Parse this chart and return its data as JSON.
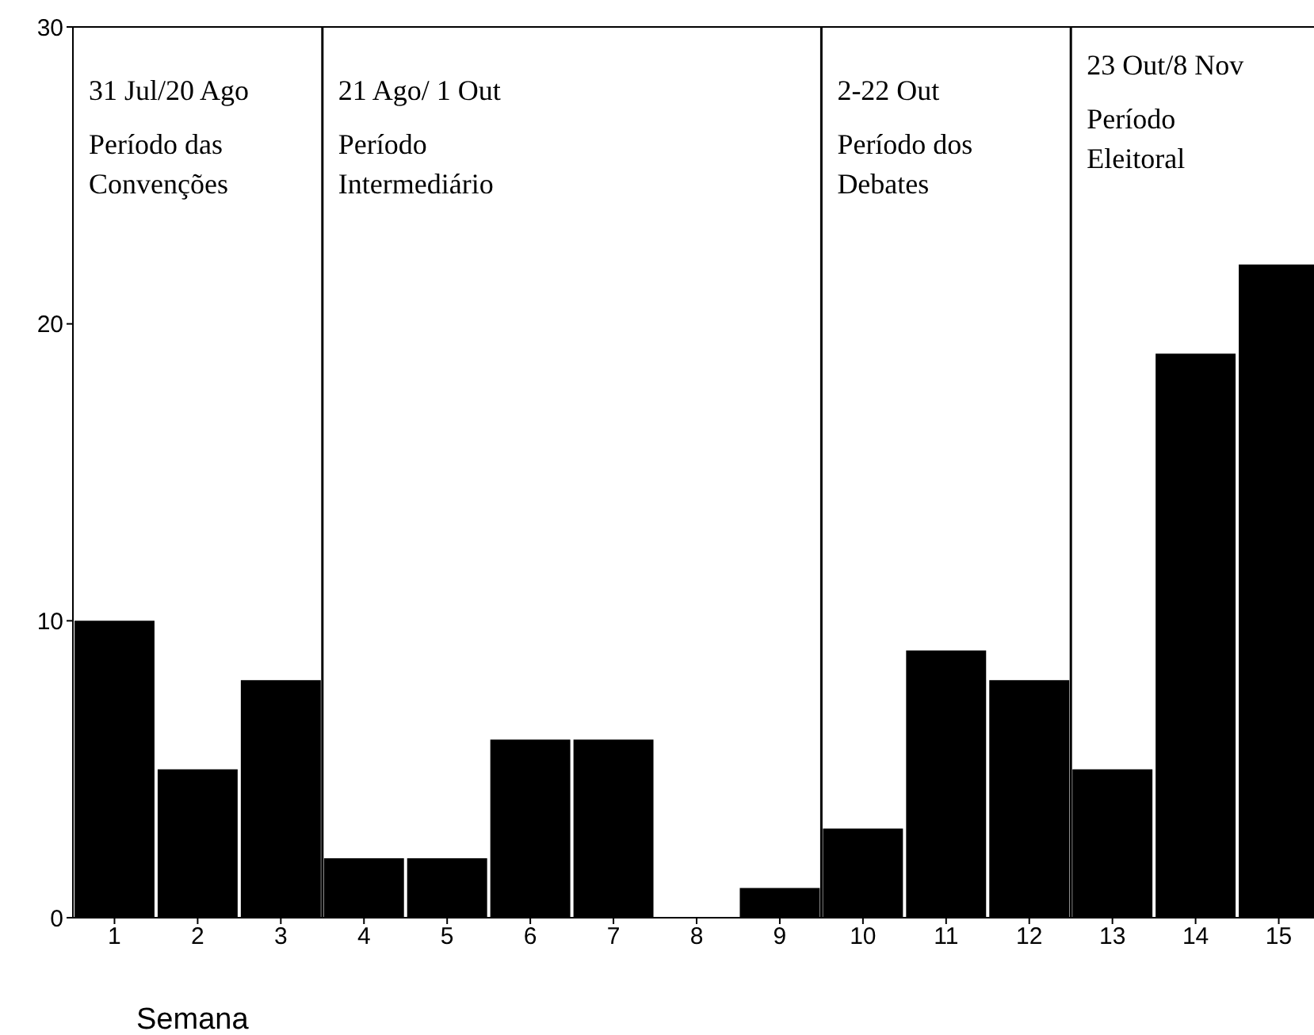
{
  "chart_data": {
    "type": "bar",
    "xlabel": "Semana",
    "x": [
      1,
      2,
      3,
      4,
      5,
      6,
      7,
      8,
      9,
      10,
      11,
      12,
      13,
      14,
      15
    ],
    "values": [
      10,
      5,
      8,
      2,
      2,
      6,
      6,
      0,
      1,
      3,
      9,
      8,
      5,
      19,
      22
    ],
    "color": "#000000",
    "xlim": [
      0.5,
      15.5
    ],
    "xticks": [
      1,
      2,
      3,
      4,
      5,
      6,
      7,
      8,
      9,
      10,
      11,
      12,
      13,
      14,
      15
    ],
    "ylim": [
      0,
      30
    ],
    "yticks": [
      0,
      10,
      20,
      30
    ],
    "grid": false,
    "legend": false,
    "ref_lines": [
      {
        "axis": "x",
        "value": 3.5
      },
      {
        "axis": "x",
        "value": 9.5
      },
      {
        "axis": "x",
        "value": 12.5
      }
    ],
    "annotations": [
      "31 Jul/20 Ago\nPeríodo das\nConvenções",
      "21 Ago/ 1 Out\nPeríodo\nIntermediário",
      "2-22 Out\nPeríodo dos\nDebates",
      "23 Out/8 Nov\nPeríodo\nEleitoral"
    ]
  }
}
